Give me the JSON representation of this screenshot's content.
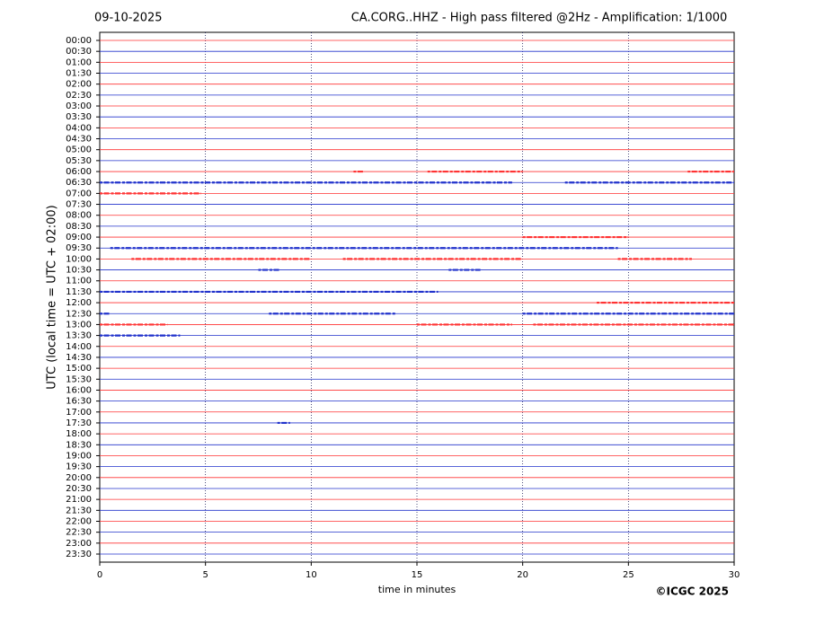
{
  "chart_data": {
    "type": "helicorder",
    "date": "09-10-2025",
    "title": "CA.CORG..HHZ - High pass filtered @2Hz - Amplification: 1/1000",
    "x_label": "time in minutes",
    "y_label": "UTC (local time = UTC + 02:00)",
    "credit": "©ICGC 2025",
    "categories": [
      "00:00",
      "00:30",
      "01:00",
      "01:30",
      "02:00",
      "02:30",
      "03:00",
      "03:30",
      "04:00",
      "04:30",
      "05:00",
      "05:30",
      "06:00",
      "06:30",
      "07:00",
      "07:30",
      "08:00",
      "08:30",
      "09:00",
      "09:30",
      "10:00",
      "10:30",
      "11:00",
      "11:30",
      "12:00",
      "12:30",
      "13:00",
      "13:30",
      "14:00",
      "14:30",
      "15:00",
      "15:30",
      "16:00",
      "16:30",
      "17:00",
      "17:30",
      "18:00",
      "18:30",
      "19:00",
      "19:30",
      "20:00",
      "20:30",
      "21:00",
      "21:30",
      "22:00",
      "22:30",
      "23:00",
      "23:30"
    ],
    "colors": [
      "#ff3333",
      "#2233cc"
    ],
    "xlim": [
      0,
      30
    ],
    "xticks": [
      0,
      5,
      10,
      15,
      20,
      25,
      30
    ],
    "bursts": [
      {
        "row": 12,
        "start": 12,
        "end": 12.5
      },
      {
        "row": 12,
        "start": 15.5,
        "end": 20
      },
      {
        "row": 12,
        "start": 27.8,
        "end": 30
      },
      {
        "row": 13,
        "start": 0,
        "end": 19.5
      },
      {
        "row": 13,
        "start": 22,
        "end": 30
      },
      {
        "row": 14,
        "start": 0,
        "end": 4.8
      },
      {
        "row": 18,
        "start": 20,
        "end": 25
      },
      {
        "row": 19,
        "start": 0.5,
        "end": 24.5
      },
      {
        "row": 20,
        "start": 1.5,
        "end": 10
      },
      {
        "row": 20,
        "start": 11.5,
        "end": 20
      },
      {
        "row": 20,
        "start": 24.5,
        "end": 28
      },
      {
        "row": 21,
        "start": 7.5,
        "end": 8.5
      },
      {
        "row": 21,
        "start": 16.5,
        "end": 18
      },
      {
        "row": 23,
        "start": 0,
        "end": 16
      },
      {
        "row": 24,
        "start": 23.5,
        "end": 30
      },
      {
        "row": 25,
        "start": 0,
        "end": 0.5
      },
      {
        "row": 25,
        "start": 8,
        "end": 14
      },
      {
        "row": 25,
        "start": 20,
        "end": 30
      },
      {
        "row": 26,
        "start": 0,
        "end": 3.2
      },
      {
        "row": 26,
        "start": 15,
        "end": 19.5
      },
      {
        "row": 26,
        "start": 20.5,
        "end": 30
      },
      {
        "row": 27,
        "start": 0,
        "end": 3.8
      },
      {
        "row": 35,
        "start": 8.4,
        "end": 9
      }
    ]
  }
}
